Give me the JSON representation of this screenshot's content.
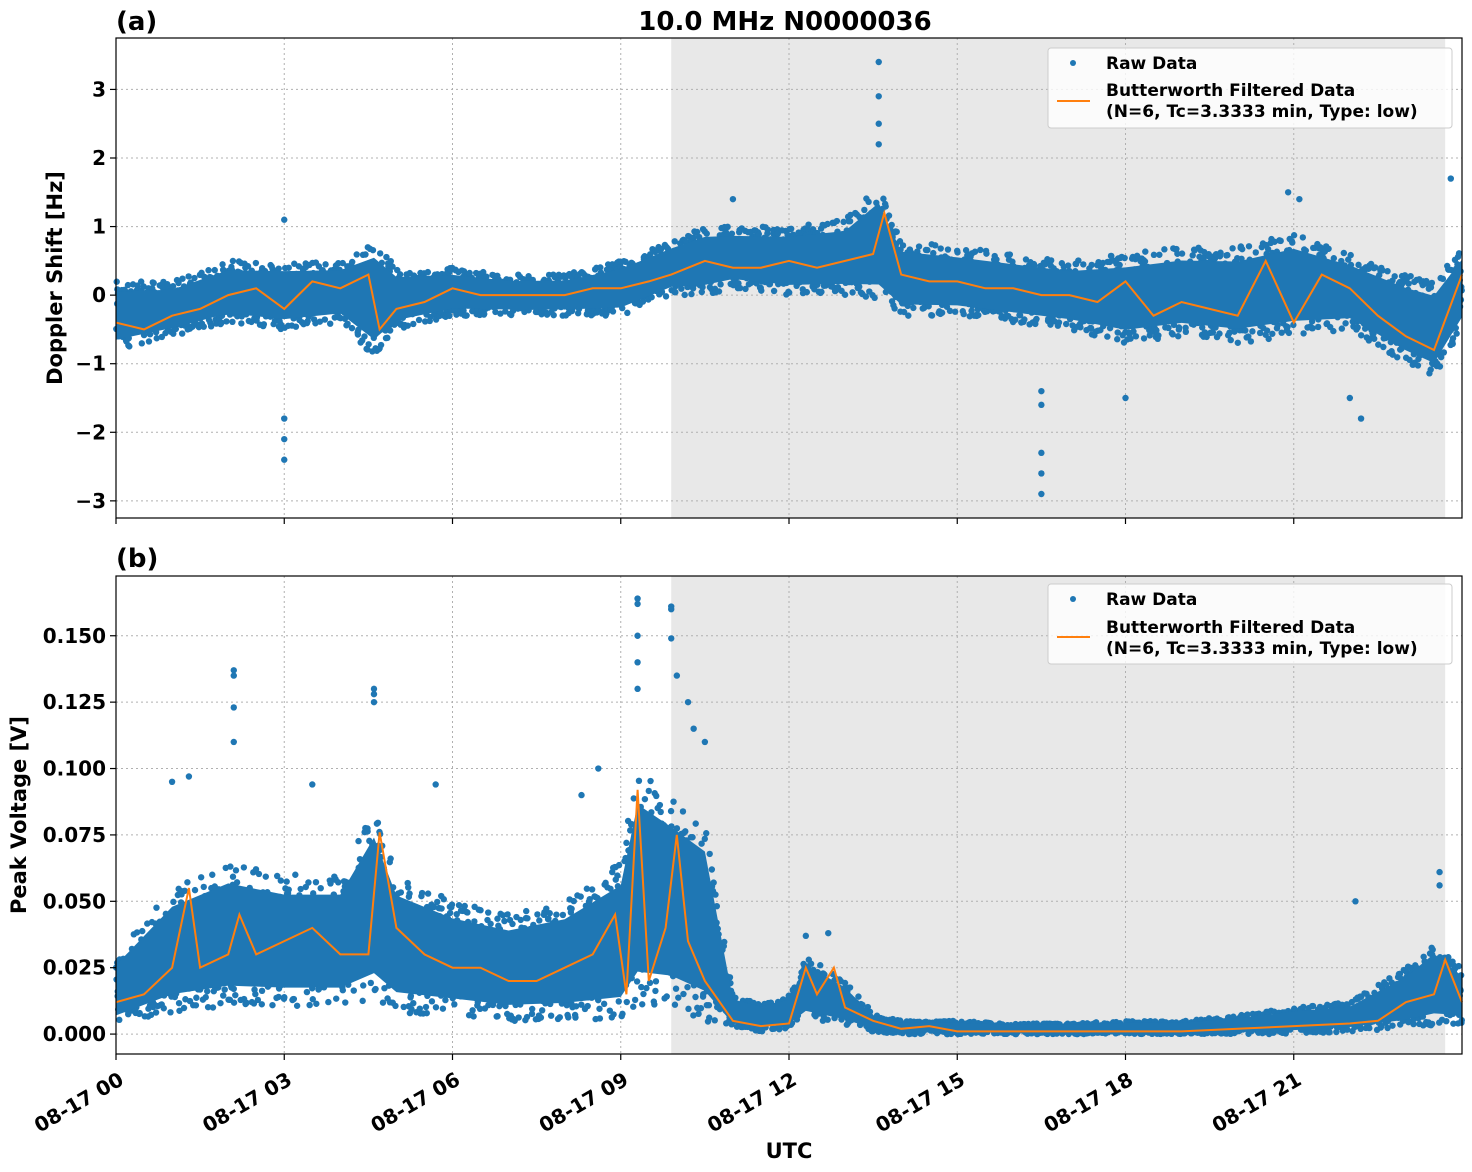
{
  "figure": {
    "title": "10.0 MHz N0000036",
    "xlabel": "UTC",
    "legend": {
      "raw_label": "Raw Data",
      "filtered_label_line1": "Butterworth Filtered Data",
      "filtered_label_line2": "(N=6, Tc=3.3333 min, Type: low)"
    },
    "colors": {
      "raw": "#1f77b4",
      "filtered": "#ff7f0e",
      "shade": "#e8e8e8",
      "grid": "#b0b0b0"
    }
  },
  "chart_data": [
    {
      "type": "scatter",
      "panel_label": "(a)",
      "ylabel": "Doppler Shift [Hz]",
      "xlim": [
        "08-17 00:00",
        "08-18 00:00"
      ],
      "ylim": [
        -3.25,
        3.75
      ],
      "yticks": [
        -3,
        -2,
        -1,
        0,
        1,
        2,
        3
      ],
      "ytick_labels": [
        "−3",
        "−2",
        "−1",
        "0",
        "1",
        "2",
        "3"
      ],
      "shaded_interval_utc_hours": [
        9.9,
        23.7
      ],
      "grid": true,
      "legend_position": "top-right",
      "series": [
        {
          "name": "Raw Data",
          "kind": "points",
          "envelope_hours": [
            0,
            1,
            2,
            3,
            4,
            4.6,
            5,
            6,
            7,
            8,
            9,
            9.9,
            10.5,
            11,
            12,
            13,
            13.6,
            14,
            15,
            16,
            17,
            18,
            19,
            20,
            21,
            22,
            23,
            23.5,
            24
          ],
          "envelope_low": [
            -0.8,
            -0.6,
            -0.4,
            -0.5,
            -0.4,
            -0.9,
            -0.5,
            -0.3,
            -0.3,
            -0.3,
            -0.3,
            0.0,
            0.0,
            0.1,
            0.0,
            0.0,
            -0.1,
            -0.3,
            -0.3,
            -0.4,
            -0.5,
            -0.7,
            -0.6,
            -0.7,
            -0.6,
            -0.5,
            -1.0,
            -1.2,
            -0.5
          ],
          "envelope_high": [
            0.2,
            0.2,
            0.5,
            0.5,
            0.5,
            0.8,
            0.4,
            0.4,
            0.3,
            0.3,
            0.5,
            0.8,
            1.0,
            1.0,
            1.0,
            1.1,
            1.6,
            0.8,
            0.7,
            0.6,
            0.5,
            0.6,
            0.7,
            0.7,
            0.9,
            0.6,
            0.3,
            0.2,
            0.7
          ]
        },
        {
          "name": "Butterworth Filtered Data (N=6, Tc=3.3333 min, Type: low)",
          "kind": "line",
          "x_hours": [
            0,
            0.5,
            1,
            1.5,
            2,
            2.5,
            3,
            3.5,
            4,
            4.5,
            4.7,
            5,
            5.5,
            6,
            6.5,
            7,
            7.5,
            8,
            8.5,
            9,
            9.5,
            9.9,
            10.5,
            11,
            11.5,
            12,
            12.5,
            13,
            13.5,
            13.7,
            14,
            14.5,
            15,
            15.5,
            16,
            16.5,
            17,
            17.5,
            18,
            18.5,
            19,
            19.5,
            20,
            20.5,
            21,
            21.5,
            22,
            22.5,
            23,
            23.5,
            24
          ],
          "y": [
            -0.4,
            -0.5,
            -0.3,
            -0.2,
            0.0,
            0.1,
            -0.2,
            0.2,
            0.1,
            0.3,
            -0.5,
            -0.2,
            -0.1,
            0.1,
            0.0,
            0.0,
            0.0,
            0.0,
            0.1,
            0.1,
            0.2,
            0.3,
            0.5,
            0.4,
            0.4,
            0.5,
            0.4,
            0.5,
            0.6,
            1.2,
            0.3,
            0.2,
            0.2,
            0.1,
            0.1,
            0.0,
            0.0,
            -0.1,
            0.2,
            -0.3,
            -0.1,
            -0.2,
            -0.3,
            0.5,
            -0.4,
            0.3,
            0.1,
            -0.3,
            -0.6,
            -0.8,
            0.3
          ]
        },
        {
          "name": "Raw Data spikes",
          "kind": "points",
          "points": [
            [
              3.0,
              -2.4
            ],
            [
              3.0,
              -2.1
            ],
            [
              3.0,
              -1.8
            ],
            [
              3.0,
              1.1
            ],
            [
              13.6,
              3.4
            ],
            [
              13.6,
              2.9
            ],
            [
              13.6,
              2.5
            ],
            [
              13.6,
              2.2
            ],
            [
              16.5,
              -2.9
            ],
            [
              16.5,
              -2.6
            ],
            [
              16.5,
              -2.3
            ],
            [
              16.5,
              -1.6
            ],
            [
              16.5,
              -1.4
            ],
            [
              22.2,
              -1.8
            ],
            [
              22.0,
              -1.5
            ],
            [
              18.0,
              -1.5
            ],
            [
              11.0,
              1.4
            ],
            [
              20.9,
              1.5
            ],
            [
              21.1,
              1.4
            ],
            [
              23.8,
              1.7
            ]
          ]
        }
      ]
    },
    {
      "type": "scatter",
      "panel_label": "(b)",
      "ylabel": "Peak Voltage [V]",
      "xlim": [
        "08-17 00:00",
        "08-18 00:00"
      ],
      "ylim": [
        -0.0075,
        0.1725
      ],
      "yticks": [
        0.0,
        0.025,
        0.05,
        0.075,
        0.1,
        0.125,
        0.15
      ],
      "ytick_labels": [
        "0.000",
        "0.025",
        "0.050",
        "0.075",
        "0.100",
        "0.125",
        "0.150"
      ],
      "xticks_hours": [
        0,
        3,
        6,
        9,
        12,
        15,
        18,
        21
      ],
      "xtick_labels": [
        "08-17 00",
        "08-17 03",
        "08-17 06",
        "08-17 09",
        "08-17 12",
        "08-17 15",
        "08-17 18",
        "08-17 21"
      ],
      "shaded_interval_utc_hours": [
        9.9,
        23.7
      ],
      "grid": true,
      "legend_position": "top-right",
      "series": [
        {
          "name": "Raw Data",
          "kind": "points",
          "envelope_hours": [
            0,
            1,
            2,
            3,
            4,
            4.6,
            5,
            6,
            7,
            8,
            9,
            9.3,
            9.9,
            10.5,
            11,
            11.5,
            12,
            12.3,
            13,
            13.5,
            14,
            15,
            16,
            17,
            18,
            19,
            20,
            21,
            22,
            23,
            23.5,
            24
          ],
          "envelope_low": [
            0.003,
            0.008,
            0.01,
            0.01,
            0.01,
            0.012,
            0.008,
            0.007,
            0.005,
            0.005,
            0.005,
            0.01,
            0.01,
            0.005,
            0.002,
            0.001,
            0.002,
            0.005,
            0.003,
            0.001,
            0.0,
            0.0,
            0.0,
            0.0,
            0.0,
            0.0,
            0.0,
            0.0,
            0.001,
            0.002,
            0.003,
            0.004
          ],
          "envelope_high": [
            0.03,
            0.055,
            0.065,
            0.06,
            0.06,
            0.085,
            0.06,
            0.05,
            0.045,
            0.05,
            0.065,
            0.1,
            0.09,
            0.08,
            0.015,
            0.012,
            0.015,
            0.03,
            0.02,
            0.008,
            0.005,
            0.005,
            0.004,
            0.004,
            0.005,
            0.005,
            0.007,
            0.01,
            0.012,
            0.025,
            0.035,
            0.025
          ]
        },
        {
          "name": "Butterworth Filtered Data (N=6, Tc=3.3333 min, Type: low)",
          "kind": "line",
          "x_hours": [
            0,
            0.5,
            1,
            1.3,
            1.5,
            2,
            2.2,
            2.5,
            3,
            3.5,
            4,
            4.5,
            4.7,
            5,
            5.5,
            6,
            6.5,
            7,
            7.5,
            8,
            8.5,
            8.9,
            9.1,
            9.3,
            9.5,
            9.8,
            10,
            10.2,
            10.5,
            11,
            11.5,
            12,
            12.3,
            12.5,
            12.8,
            13,
            13.5,
            14,
            14.5,
            15,
            16,
            17,
            18,
            19,
            20,
            21,
            22,
            22.5,
            23,
            23.5,
            23.7,
            24
          ],
          "y": [
            0.012,
            0.015,
            0.025,
            0.055,
            0.025,
            0.03,
            0.045,
            0.03,
            0.035,
            0.04,
            0.03,
            0.03,
            0.076,
            0.04,
            0.03,
            0.025,
            0.025,
            0.02,
            0.02,
            0.025,
            0.03,
            0.045,
            0.015,
            0.092,
            0.02,
            0.04,
            0.075,
            0.035,
            0.02,
            0.005,
            0.003,
            0.004,
            0.025,
            0.015,
            0.025,
            0.01,
            0.005,
            0.002,
            0.003,
            0.001,
            0.001,
            0.001,
            0.001,
            0.001,
            0.002,
            0.003,
            0.004,
            0.005,
            0.012,
            0.015,
            0.028,
            0.012
          ]
        },
        {
          "name": "Raw Data spikes",
          "kind": "points",
          "points": [
            [
              2.1,
              0.137
            ],
            [
              2.1,
              0.135
            ],
            [
              2.1,
              0.123
            ],
            [
              2.1,
              0.11
            ],
            [
              4.6,
              0.13
            ],
            [
              4.6,
              0.128
            ],
            [
              4.6,
              0.125
            ],
            [
              9.3,
              0.164
            ],
            [
              9.3,
              0.162
            ],
            [
              9.3,
              0.15
            ],
            [
              9.3,
              0.14
            ],
            [
              9.3,
              0.13
            ],
            [
              9.9,
              0.161
            ],
            [
              9.9,
              0.16
            ],
            [
              9.9,
              0.149
            ],
            [
              10.0,
              0.135
            ],
            [
              10.2,
              0.125
            ],
            [
              10.3,
              0.115
            ],
            [
              10.5,
              0.11
            ],
            [
              1.0,
              0.095
            ],
            [
              1.3,
              0.097
            ],
            [
              3.5,
              0.094
            ],
            [
              5.7,
              0.094
            ],
            [
              8.6,
              0.1
            ],
            [
              8.3,
              0.09
            ],
            [
              23.6,
              0.061
            ],
            [
              23.6,
              0.056
            ],
            [
              22.1,
              0.05
            ],
            [
              12.3,
              0.037
            ],
            [
              12.7,
              0.038
            ]
          ]
        }
      ]
    }
  ]
}
